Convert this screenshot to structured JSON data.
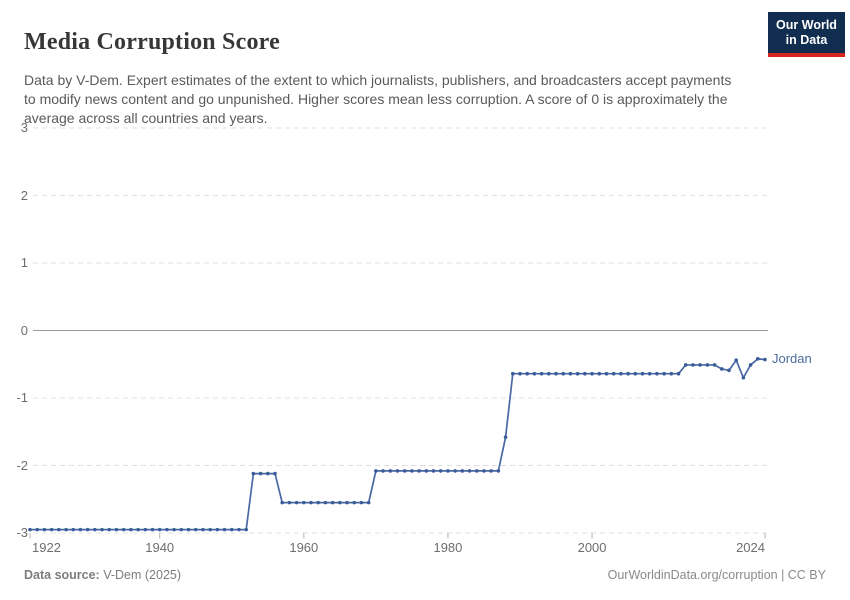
{
  "header": {
    "title": "Media Corruption Score",
    "subtitle": "Data by V-Dem. Expert estimates of the extent to which journalists, publishers, and broadcasters accept payments to modify news content and go unpunished. Higher scores mean less corruption. A score of 0 is approximately the average across all countries and years."
  },
  "logo": {
    "line1": "Our World",
    "line2": "in Data",
    "bg_color": "#112e51",
    "accent_color": "#d7261e"
  },
  "chart_data": {
    "type": "line",
    "title": "Media Corruption Score",
    "xlabel": "",
    "ylabel": "",
    "xlim": [
      1922,
      2024
    ],
    "ylim": [
      -3,
      3
    ],
    "xticks": [
      1922,
      1940,
      1960,
      1980,
      2000,
      2024
    ],
    "yticks": [
      3,
      2,
      1,
      0,
      -1,
      -2,
      -3
    ],
    "grid": "horizontal-dashed",
    "zero_line": true,
    "legend_position": "end-of-line",
    "line_color": "#4a68a4",
    "dot_color": "#3b5c99",
    "label_color": "#4c6a9c",
    "series": [
      {
        "name": "Jordan",
        "points": [
          [
            1922,
            -2.95
          ],
          [
            1923,
            -2.95
          ],
          [
            1924,
            -2.95
          ],
          [
            1925,
            -2.95
          ],
          [
            1926,
            -2.95
          ],
          [
            1927,
            -2.95
          ],
          [
            1928,
            -2.95
          ],
          [
            1929,
            -2.95
          ],
          [
            1930,
            -2.95
          ],
          [
            1931,
            -2.95
          ],
          [
            1932,
            -2.95
          ],
          [
            1933,
            -2.95
          ],
          [
            1934,
            -2.95
          ],
          [
            1935,
            -2.95
          ],
          [
            1936,
            -2.95
          ],
          [
            1937,
            -2.95
          ],
          [
            1938,
            -2.95
          ],
          [
            1939,
            -2.95
          ],
          [
            1940,
            -2.95
          ],
          [
            1941,
            -2.95
          ],
          [
            1942,
            -2.95
          ],
          [
            1943,
            -2.95
          ],
          [
            1944,
            -2.95
          ],
          [
            1945,
            -2.95
          ],
          [
            1946,
            -2.95
          ],
          [
            1947,
            -2.95
          ],
          [
            1948,
            -2.95
          ],
          [
            1949,
            -2.95
          ],
          [
            1950,
            -2.95
          ],
          [
            1951,
            -2.95
          ],
          [
            1952,
            -2.95
          ],
          [
            1953,
            -2.12
          ],
          [
            1954,
            -2.12
          ],
          [
            1955,
            -2.12
          ],
          [
            1956,
            -2.12
          ],
          [
            1957,
            -2.55
          ],
          [
            1958,
            -2.55
          ],
          [
            1959,
            -2.55
          ],
          [
            1960,
            -2.55
          ],
          [
            1961,
            -2.55
          ],
          [
            1962,
            -2.55
          ],
          [
            1963,
            -2.55
          ],
          [
            1964,
            -2.55
          ],
          [
            1965,
            -2.55
          ],
          [
            1966,
            -2.55
          ],
          [
            1967,
            -2.55
          ],
          [
            1968,
            -2.55
          ],
          [
            1969,
            -2.55
          ],
          [
            1970,
            -2.08
          ],
          [
            1971,
            -2.08
          ],
          [
            1972,
            -2.08
          ],
          [
            1973,
            -2.08
          ],
          [
            1974,
            -2.08
          ],
          [
            1975,
            -2.08
          ],
          [
            1976,
            -2.08
          ],
          [
            1977,
            -2.08
          ],
          [
            1978,
            -2.08
          ],
          [
            1979,
            -2.08
          ],
          [
            1980,
            -2.08
          ],
          [
            1981,
            -2.08
          ],
          [
            1982,
            -2.08
          ],
          [
            1983,
            -2.08
          ],
          [
            1984,
            -2.08
          ],
          [
            1985,
            -2.08
          ],
          [
            1986,
            -2.08
          ],
          [
            1987,
            -2.08
          ],
          [
            1988,
            -1.58
          ],
          [
            1989,
            -0.64
          ],
          [
            1990,
            -0.64
          ],
          [
            1991,
            -0.64
          ],
          [
            1992,
            -0.64
          ],
          [
            1993,
            -0.64
          ],
          [
            1994,
            -0.64
          ],
          [
            1995,
            -0.64
          ],
          [
            1996,
            -0.64
          ],
          [
            1997,
            -0.64
          ],
          [
            1998,
            -0.64
          ],
          [
            1999,
            -0.64
          ],
          [
            2000,
            -0.64
          ],
          [
            2001,
            -0.64
          ],
          [
            2002,
            -0.64
          ],
          [
            2003,
            -0.64
          ],
          [
            2004,
            -0.64
          ],
          [
            2005,
            -0.64
          ],
          [
            2006,
            -0.64
          ],
          [
            2007,
            -0.64
          ],
          [
            2008,
            -0.64
          ],
          [
            2009,
            -0.64
          ],
          [
            2010,
            -0.64
          ],
          [
            2011,
            -0.64
          ],
          [
            2012,
            -0.64
          ],
          [
            2013,
            -0.51
          ],
          [
            2014,
            -0.51
          ],
          [
            2015,
            -0.51
          ],
          [
            2016,
            -0.51
          ],
          [
            2017,
            -0.51
          ],
          [
            2018,
            -0.57
          ],
          [
            2019,
            -0.59
          ],
          [
            2020,
            -0.44
          ],
          [
            2021,
            -0.7
          ],
          [
            2022,
            -0.51
          ],
          [
            2023,
            -0.42
          ],
          [
            2024,
            -0.43
          ]
        ]
      }
    ]
  },
  "footer": {
    "source_label": "Data source:",
    "source_value": " V-Dem (2025)",
    "credit": "OurWorldinData.org/corruption | CC BY"
  }
}
